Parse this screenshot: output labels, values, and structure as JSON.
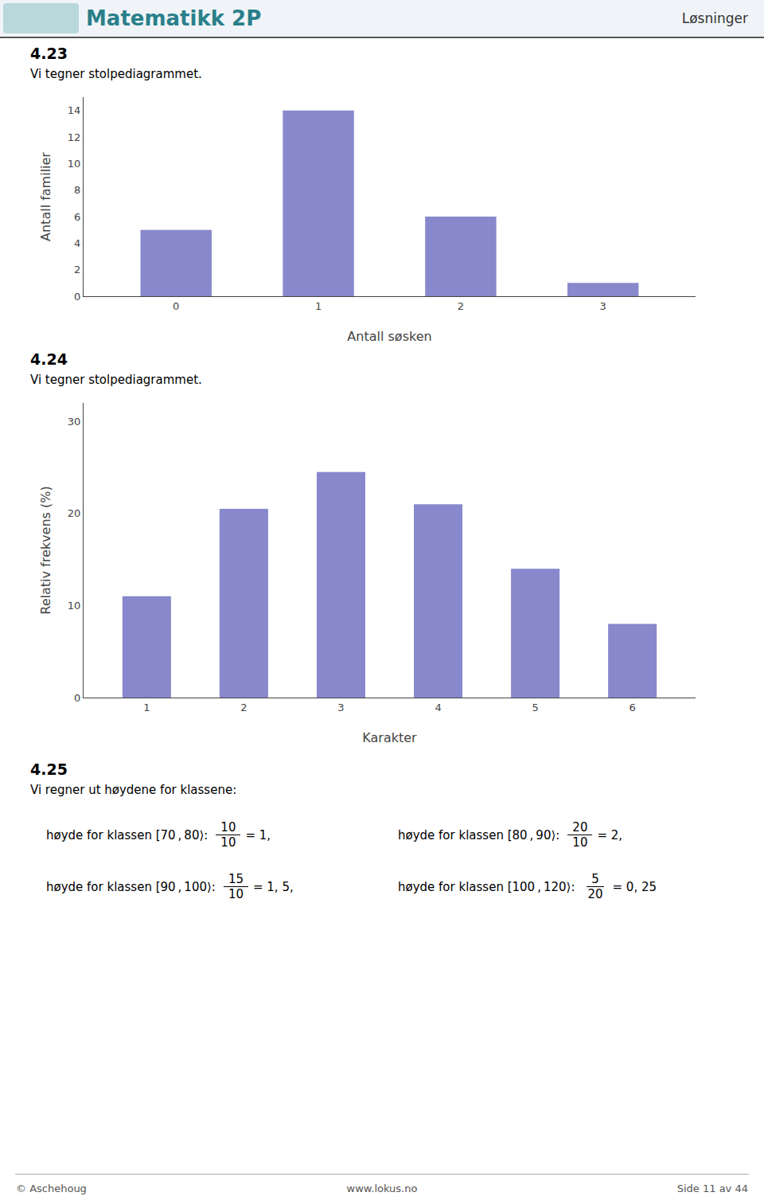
{
  "header": {
    "title": "Matematikk 2P",
    "right": "Løsninger"
  },
  "chart_data": [
    {
      "type": "bar",
      "title": "4.23",
      "subtitle": "Vi tegner stolpediagrammet.",
      "x": [
        0,
        1,
        2,
        3
      ],
      "values": [
        5,
        14,
        6,
        1
      ],
      "color": "#8888cc",
      "xlabel": "Antall søsken",
      "ylabel": "Antall familier",
      "xlim": [
        -0.65,
        3.65
      ],
      "xticks": [
        0,
        1,
        2,
        3
      ],
      "ylim": [
        0,
        15
      ],
      "yticks": [
        0,
        2,
        4,
        6,
        8,
        10,
        12,
        14
      ],
      "grid": false
    },
    {
      "type": "bar",
      "title": "4.24",
      "subtitle": "Vi tegner stolpediagrammet.",
      "x": [
        1,
        2,
        3,
        4,
        5,
        6
      ],
      "values": [
        11,
        20.5,
        24.5,
        21,
        14,
        8
      ],
      "color": "#8888cc",
      "xlabel": "Karakter",
      "ylabel": "Relativ frekvens (%)",
      "xlim": [
        0.35,
        6.65
      ],
      "xticks": [
        1,
        2,
        3,
        4,
        5,
        6
      ],
      "ylim": [
        0,
        32
      ],
      "yticks": [
        0,
        10,
        20,
        30
      ],
      "grid": false
    }
  ],
  "section": {
    "title": "4.25",
    "text": "Vi regner ut høydene for klassene:",
    "annotations": [
      {
        "text": "høyde for klassen [70 , 80⟩:",
        "numerator": "10",
        "denominator": "10",
        "result": "= 1,"
      },
      {
        "text": "høyde for klassen [80 , 90⟩:",
        "numerator": "20",
        "denominator": "10",
        "result": "= 2,"
      },
      {
        "text": "høyde for klassen [90 , 100⟩:",
        "numerator": "15",
        "denominator": "10",
        "result": "= 1, 5,"
      },
      {
        "text": "høyde for klassen [100 , 120⟩:",
        "numerator": "5",
        "denominator": "20",
        "result": "= 0, 25"
      }
    ]
  },
  "footer": {
    "left": "© Aschehoug",
    "center": "www.lokus.no",
    "right": "Side 11 av 44"
  }
}
